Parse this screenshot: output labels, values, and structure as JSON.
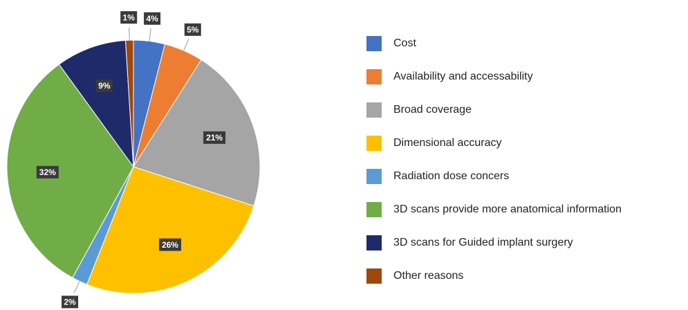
{
  "chart_data": {
    "type": "pie",
    "categories": [
      "Cost",
      "Availability and accessability",
      "Broad coverage",
      "Dimensional accuracy",
      "Radiation dose concers",
      "3D scans provide more anatomical information",
      "3D scans for Guided implant surgery",
      "Other reasons"
    ],
    "values": [
      4,
      5,
      21,
      26,
      2,
      32,
      9,
      1
    ],
    "value_labels": [
      "4%",
      "5%",
      "21%",
      "26%",
      "2%",
      "32%",
      "9%",
      "1%"
    ],
    "colors": [
      "#4472c4",
      "#ed7d31",
      "#a5a5a5",
      "#ffc000",
      "#5b9bd5",
      "#70ad47",
      "#1f2a6b",
      "#9e480e"
    ],
    "legend": "right"
  }
}
